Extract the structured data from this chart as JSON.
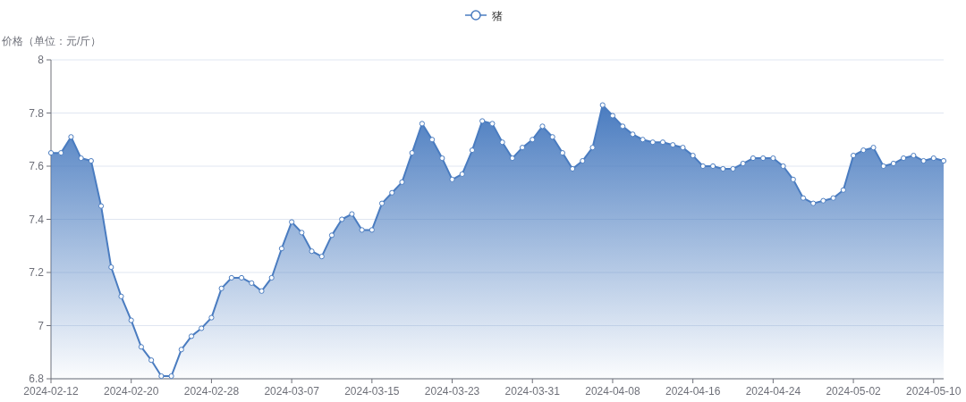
{
  "chart_data": {
    "type": "area",
    "ylabel": "价格（单位：元/斤）",
    "x": [
      "2024-02-12",
      "2024-02-13",
      "2024-02-14",
      "2024-02-15",
      "2024-02-16",
      "2024-02-17",
      "2024-02-18",
      "2024-02-19",
      "2024-02-20",
      "2024-02-21",
      "2024-02-22",
      "2024-02-23",
      "2024-02-24",
      "2024-02-25",
      "2024-02-26",
      "2024-02-27",
      "2024-02-28",
      "2024-02-29",
      "2024-03-01",
      "2024-03-02",
      "2024-03-03",
      "2024-03-04",
      "2024-03-05",
      "2024-03-06",
      "2024-03-07",
      "2024-03-08",
      "2024-03-09",
      "2024-03-10",
      "2024-03-11",
      "2024-03-12",
      "2024-03-13",
      "2024-03-14",
      "2024-03-15",
      "2024-03-16",
      "2024-03-17",
      "2024-03-18",
      "2024-03-19",
      "2024-03-20",
      "2024-03-21",
      "2024-03-22",
      "2024-03-23",
      "2024-03-24",
      "2024-03-25",
      "2024-03-26",
      "2024-03-27",
      "2024-03-28",
      "2024-03-29",
      "2024-03-30",
      "2024-03-31",
      "2024-04-01",
      "2024-04-02",
      "2024-04-03",
      "2024-04-04",
      "2024-04-05",
      "2024-04-06",
      "2024-04-07",
      "2024-04-08",
      "2024-04-09",
      "2024-04-10",
      "2024-04-11",
      "2024-04-12",
      "2024-04-13",
      "2024-04-14",
      "2024-04-15",
      "2024-04-16",
      "2024-04-17",
      "2024-04-18",
      "2024-04-19",
      "2024-04-20",
      "2024-04-21",
      "2024-04-22",
      "2024-04-23",
      "2024-04-24",
      "2024-04-25",
      "2024-04-26",
      "2024-04-27",
      "2024-04-28",
      "2024-04-29",
      "2024-04-30",
      "2024-05-01",
      "2024-05-02",
      "2024-05-03",
      "2024-05-04",
      "2024-05-05",
      "2024-05-06",
      "2024-05-07",
      "2024-05-08",
      "2024-05-09",
      "2024-05-10",
      "2024-05-11"
    ],
    "series": [
      {
        "name": "猪",
        "color": "#4a7cc0",
        "values": [
          7.65,
          7.65,
          7.71,
          7.63,
          7.62,
          7.45,
          7.22,
          7.11,
          7.02,
          6.92,
          6.87,
          6.81,
          6.81,
          6.91,
          6.96,
          6.99,
          7.03,
          7.14,
          7.18,
          7.18,
          7.16,
          7.13,
          7.18,
          7.29,
          7.39,
          7.35,
          7.28,
          7.26,
          7.34,
          7.4,
          7.42,
          7.36,
          7.36,
          7.46,
          7.5,
          7.54,
          7.65,
          7.76,
          7.7,
          7.63,
          7.55,
          7.57,
          7.66,
          7.77,
          7.76,
          7.69,
          7.63,
          7.67,
          7.7,
          7.75,
          7.71,
          7.65,
          7.59,
          7.62,
          7.67,
          7.83,
          7.79,
          7.75,
          7.72,
          7.7,
          7.69,
          7.69,
          7.68,
          7.67,
          7.64,
          7.6,
          7.6,
          7.59,
          7.59,
          7.61,
          7.63,
          7.63,
          7.63,
          7.6,
          7.55,
          7.48,
          7.46,
          7.47,
          7.48,
          7.51,
          7.64,
          7.66,
          7.67,
          7.6,
          7.61,
          7.63,
          7.64,
          7.62,
          7.63,
          7.62
        ]
      }
    ],
    "xlim": [
      "2024-02-12",
      "2024-05-11"
    ],
    "xticks": [
      "2024-02-12",
      "2024-02-20",
      "2024-02-28",
      "2024-03-07",
      "2024-03-15",
      "2024-03-23",
      "2024-03-31",
      "2024-04-08",
      "2024-04-16",
      "2024-04-24",
      "2024-05-02",
      "2024-05-10"
    ],
    "ylim": [
      6.8,
      8
    ],
    "yticks": [
      6.8,
      7,
      7.2,
      7.4,
      7.6,
      7.8,
      8
    ],
    "grid": "y",
    "legend": "top",
    "marker": "circle"
  }
}
